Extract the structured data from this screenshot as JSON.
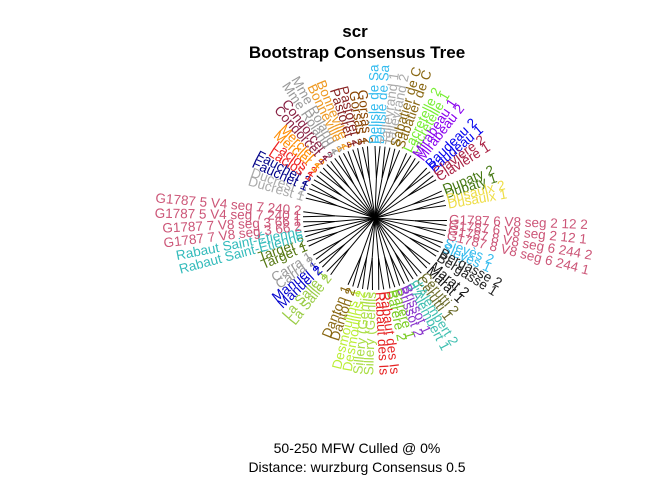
{
  "title": "scr",
  "subtitle": "Bootstrap Consensus Tree",
  "caption_line1": "50-250 MFW  Culled @ 0%",
  "caption_line2": "Distance: wurzburg Consensus 0.5",
  "chart_data": {
    "type": "radial-tree",
    "leaves": [
      {
        "label": "Sieyès 2",
        "color": "#33bbee",
        "angle": 20
      },
      {
        "label": "Sieyès 1",
        "color": "#33bbee",
        "angle": 24
      },
      {
        "label": "Bergasse 2",
        "color": "#222222",
        "angle": 28
      },
      {
        "label": "Bergasse 1",
        "color": "#222222",
        "angle": 32
      },
      {
        "label": "Marat 2",
        "color": "#111111",
        "angle": 40
      },
      {
        "label": "Marat 1",
        "color": "#111111",
        "angle": 44
      },
      {
        "label": "Cérutti 2",
        "color": "#6b6b2a",
        "angle": 50
      },
      {
        "label": "Cérutti 1",
        "color": "#6b6b2a",
        "angle": 54
      },
      {
        "label": "d'Alembert 2",
        "color": "#3fbfb0",
        "angle": 58
      },
      {
        "label": "d'Alembert 1",
        "color": "#3fbfb0",
        "angle": 62
      },
      {
        "label": "Brissot 1",
        "color": "#8833cc",
        "angle": 66
      },
      {
        "label": "Brissot 2",
        "color": "#8833cc",
        "angle": 70
      },
      {
        "label": "Barère 1",
        "color": "#7acc22",
        "angle": 74
      },
      {
        "label": "Barère 2",
        "color": "#7acc22",
        "angle": 78
      },
      {
        "label": "Rabaut des Is",
        "color": "#e62222",
        "angle": 83
      },
      {
        "label": "Rabaut des Is",
        "color": "#e62222",
        "angle": 87
      },
      {
        "label": "Sillery (Genlis",
        "color": "#aadd44",
        "angle": 92
      },
      {
        "label": "Sillery (Genlis",
        "color": "#aadd44",
        "angle": 96
      },
      {
        "label": "Desmoulins 2",
        "color": "#bbee33",
        "angle": 100
      },
      {
        "label": "Desmoulins 1",
        "color": "#bbee33",
        "angle": 104
      },
      {
        "label": "Danton 2",
        "color": "#886611",
        "angle": 108
      },
      {
        "label": "Danton 1",
        "color": "#886611",
        "angle": 112
      },
      {
        "label": "La Salle 2",
        "color": "#99cc44",
        "angle": 128
      },
      {
        "label": "La Salle 1",
        "color": "#99cc44",
        "angle": 132
      },
      {
        "label": "Manuel 2",
        "color": "#0000cc",
        "angle": 137
      },
      {
        "label": "Manuel 1",
        "color": "#0000cc",
        "angle": 141
      },
      {
        "label": "Carra 2",
        "color": "#999999",
        "angle": 145
      },
      {
        "label": "Carra 1",
        "color": "#999999",
        "angle": 149
      },
      {
        "label": "Target 1",
        "color": "#557711",
        "angle": 157
      },
      {
        "label": "Target 2",
        "color": "#557711",
        "angle": 161
      },
      {
        "label": "Rabaut Saint-Étienne",
        "color": "#33bbbb",
        "angle": 165
      },
      {
        "label": "Rabaut Saint-Étienne",
        "color": "#33bbbb",
        "angle": 169
      },
      {
        "label": "G1787 7 V8 seg 3 66 2",
        "color": "#cc5577",
        "angle": 173
      },
      {
        "label": "G1787 7 V8 seg 3 66 1",
        "color": "#cc5577",
        "angle": 177
      },
      {
        "label": "G1787 5 V4 seg 7 240 1",
        "color": "#cc5577",
        "angle": 181
      },
      {
        "label": "G1787 5 V4 seg 7 240 2",
        "color": "#cc5577",
        "angle": 185
      },
      {
        "label": "Ducrest 1",
        "color": "#aaaaaa",
        "angle": 196
      },
      {
        "label": "Ducrest 2",
        "color": "#aaaaaa",
        "angle": 200
      },
      {
        "label": "Fauchet 1",
        "color": "#000088",
        "angle": 204
      },
      {
        "label": "Fauchet 2",
        "color": "#000088",
        "angle": 208
      },
      {
        "label": "Laclos 1",
        "color": "#ee2222",
        "angle": 212
      },
      {
        "label": "Laclos 2",
        "color": "#ee2222",
        "angle": 216
      },
      {
        "label": "Mercier 1",
        "color": "#ff8c00",
        "angle": 220
      },
      {
        "label": "Mercier 2",
        "color": "#ff8c00",
        "angle": 224
      },
      {
        "label": "Condorcet 1",
        "color": "#882244",
        "angle": 228
      },
      {
        "label": "Condorcet 2",
        "color": "#882244",
        "angle": 232
      },
      {
        "label": "Mme Roland 1",
        "color": "#999999",
        "angle": 236
      },
      {
        "label": "Mme Roland 2",
        "color": "#999999",
        "angle": 240
      },
      {
        "label": "Bonneville 1",
        "color": "#ee9922",
        "angle": 244
      },
      {
        "label": "Bonneville 2",
        "color": "#ee9922",
        "angle": 248
      },
      {
        "label": "Pastoret 1",
        "color": "#882222",
        "angle": 252
      },
      {
        "label": "Pastoret 2",
        "color": "#882222",
        "angle": 256
      },
      {
        "label": "Gorsas 1",
        "color": "#884400",
        "angle": 260
      },
      {
        "label": "Gorsas 2",
        "color": "#884400",
        "angle": 264
      },
      {
        "label": "Delisle de Sa",
        "color": "#33bbee",
        "angle": 270
      },
      {
        "label": "Delisle de Sa",
        "color": "#33bbee",
        "angle": 274
      },
      {
        "label": "Talleyrand 1",
        "color": "#aaaaaa",
        "angle": 278
      },
      {
        "label": "Talleyrand 2",
        "color": "#aaaaaa",
        "angle": 282
      },
      {
        "label": "Sabatier de C",
        "color": "#886611",
        "angle": 286
      },
      {
        "label": "Sabatier de C",
        "color": "#886611",
        "angle": 290
      },
      {
        "label": "Lacretelle 2",
        "color": "#77ee33",
        "angle": 296
      },
      {
        "label": "Lacretelle 1",
        "color": "#77ee33",
        "angle": 300
      },
      {
        "label": "Mirabeau 1",
        "color": "#8800ee",
        "angle": 304
      },
      {
        "label": "Mirabeau 2",
        "color": "#8800ee",
        "angle": 308
      },
      {
        "label": "Baudeau 2",
        "color": "#0000ee",
        "angle": 316
      },
      {
        "label": "Baudeau 1",
        "color": "#0000ee",
        "angle": 320
      },
      {
        "label": "Clavière 2",
        "color": "#aa2244",
        "angle": 324
      },
      {
        "label": "Clavière 1",
        "color": "#aa2244",
        "angle": 328
      },
      {
        "label": "Dupaty 2",
        "color": "#447711",
        "angle": 338
      },
      {
        "label": "Dupaty 1",
        "color": "#447711",
        "angle": 342
      },
      {
        "label": "Dusaulx 2",
        "color": "#eedd44",
        "angle": 346
      },
      {
        "label": "Dusaulx 1",
        "color": "#eedd44",
        "angle": 350
      },
      {
        "label": "G1787 6 V8 seg 2 12 2",
        "color": "#cc5577",
        "angle": 2
      },
      {
        "label": "G1787 6 V8 seg 2 12 1",
        "color": "#cc5577",
        "angle": 6
      },
      {
        "label": "G1787 8 V8 seg 6 244 2",
        "color": "#cc5577",
        "angle": 10
      },
      {
        "label": "G1787 8 V8 seg 6 244 1",
        "color": "#cc5577",
        "angle": 14
      }
    ]
  }
}
